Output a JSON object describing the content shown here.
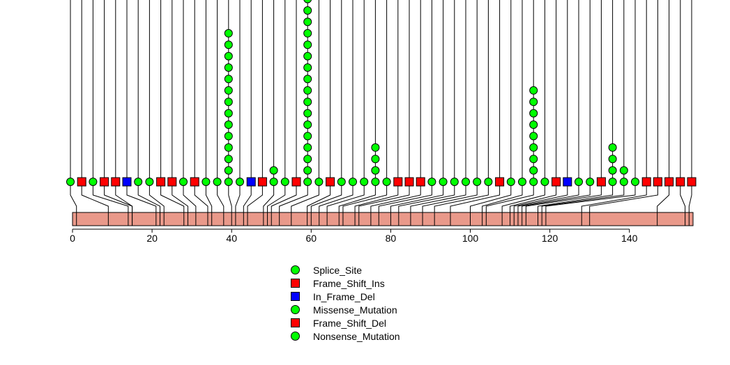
{
  "chart_data": {
    "type": "lollipop",
    "title": "",
    "xlabel": "",
    "ylabel": "",
    "xlim": [
      0,
      156
    ],
    "xticks": [
      0,
      20,
      40,
      60,
      80,
      100,
      120,
      140
    ],
    "protein_length": 156,
    "colors": {
      "Splice_Site": "#00ff00",
      "Frame_Shift_Ins": "#ff0000",
      "In_Frame_Del": "#0000ff",
      "Missense_Mutation": "#00ff00",
      "Frame_Shift_Del": "#ff0000",
      "Nonsense_Mutation": "#00ff00",
      "domain": "#e9998a"
    },
    "legend": [
      {
        "label": "Splice_Site",
        "shape": "circle",
        "color": "#00ff00"
      },
      {
        "label": "Frame_Shift_Ins",
        "shape": "square",
        "color": "#ff0000"
      },
      {
        "label": "In_Frame_Del",
        "shape": "square",
        "color": "#0000ff"
      },
      {
        "label": "Missense_Mutation",
        "shape": "circle",
        "color": "#00ff00"
      },
      {
        "label": "Frame_Shift_Del",
        "shape": "square",
        "color": "#ff0000"
      },
      {
        "label": "Nonsense_Mutation",
        "shape": "circle",
        "color": "#00ff00"
      }
    ],
    "mutations": [
      {
        "pos": 1,
        "shape": "circle",
        "count": 1
      },
      {
        "pos": 9,
        "shape": "square",
        "count": 1
      },
      {
        "pos": 14,
        "shape": "circle",
        "count": 1
      },
      {
        "pos": 15,
        "shape": "square",
        "count": 1
      },
      {
        "pos": 15,
        "shape": "square",
        "count": 1
      },
      {
        "pos": 21,
        "shape": "square",
        "color": "#0000ff",
        "count": 1
      },
      {
        "pos": 22,
        "shape": "circle",
        "count": 1
      },
      {
        "pos": 23,
        "shape": "circle",
        "count": 1
      },
      {
        "pos": 28,
        "shape": "square",
        "count": 1
      },
      {
        "pos": 29,
        "shape": "square",
        "count": 1
      },
      {
        "pos": 31,
        "shape": "circle",
        "count": 1
      },
      {
        "pos": 34,
        "shape": "square",
        "count": 1
      },
      {
        "pos": 35,
        "shape": "circle",
        "count": 1
      },
      {
        "pos": 38,
        "shape": "circle",
        "count": 1
      },
      {
        "pos": 40,
        "shape": "circle",
        "count": 14
      },
      {
        "pos": 41,
        "shape": "circle",
        "count": 1
      },
      {
        "pos": 43,
        "shape": "square",
        "color": "#0000ff",
        "count": 1
      },
      {
        "pos": 44,
        "shape": "square",
        "count": 1
      },
      {
        "pos": 48,
        "shape": "circle",
        "count": 2
      },
      {
        "pos": 49,
        "shape": "circle",
        "count": 1
      },
      {
        "pos": 50,
        "shape": "square",
        "count": 1
      },
      {
        "pos": 52,
        "shape": "circle",
        "count": 17
      },
      {
        "pos": 55,
        "shape": "circle",
        "count": 1
      },
      {
        "pos": 59,
        "shape": "square",
        "count": 1
      },
      {
        "pos": 60,
        "shape": "circle",
        "count": 1
      },
      {
        "pos": 62,
        "shape": "circle",
        "count": 1
      },
      {
        "pos": 64,
        "shape": "circle",
        "count": 1
      },
      {
        "pos": 67,
        "shape": "circle",
        "count": 4
      },
      {
        "pos": 68,
        "shape": "circle",
        "count": 1
      },
      {
        "pos": 71,
        "shape": "square",
        "count": 1
      },
      {
        "pos": 72,
        "shape": "square",
        "count": 1
      },
      {
        "pos": 75,
        "shape": "square",
        "count": 1
      },
      {
        "pos": 77,
        "shape": "circle",
        "count": 1
      },
      {
        "pos": 80,
        "shape": "circle",
        "count": 1
      },
      {
        "pos": 82,
        "shape": "circle",
        "count": 1
      },
      {
        "pos": 85,
        "shape": "circle",
        "count": 1
      },
      {
        "pos": 88,
        "shape": "circle",
        "count": 1
      },
      {
        "pos": 91,
        "shape": "circle",
        "count": 1
      },
      {
        "pos": 95,
        "shape": "square",
        "count": 1
      },
      {
        "pos": 100,
        "shape": "circle",
        "count": 1
      },
      {
        "pos": 103,
        "shape": "circle",
        "count": 1
      },
      {
        "pos": 104,
        "shape": "circle",
        "count": 9
      },
      {
        "pos": 108,
        "shape": "circle",
        "count": 1
      },
      {
        "pos": 110,
        "shape": "square",
        "count": 1
      },
      {
        "pos": 111,
        "shape": "square",
        "color": "#0000ff",
        "count": 1
      },
      {
        "pos": 112,
        "shape": "circle",
        "count": 1
      },
      {
        "pos": 113,
        "shape": "circle",
        "count": 1
      },
      {
        "pos": 114,
        "shape": "square",
        "count": 1
      },
      {
        "pos": 117,
        "shape": "circle",
        "count": 4
      },
      {
        "pos": 118,
        "shape": "circle",
        "count": 2
      },
      {
        "pos": 119,
        "shape": "circle",
        "count": 1
      },
      {
        "pos": 128,
        "shape": "square",
        "count": 1
      },
      {
        "pos": 130,
        "shape": "square",
        "count": 1
      },
      {
        "pos": 147,
        "shape": "square",
        "count": 1
      },
      {
        "pos": 154,
        "shape": "square",
        "count": 1
      },
      {
        "pos": 155,
        "shape": "square",
        "count": 1
      }
    ]
  }
}
